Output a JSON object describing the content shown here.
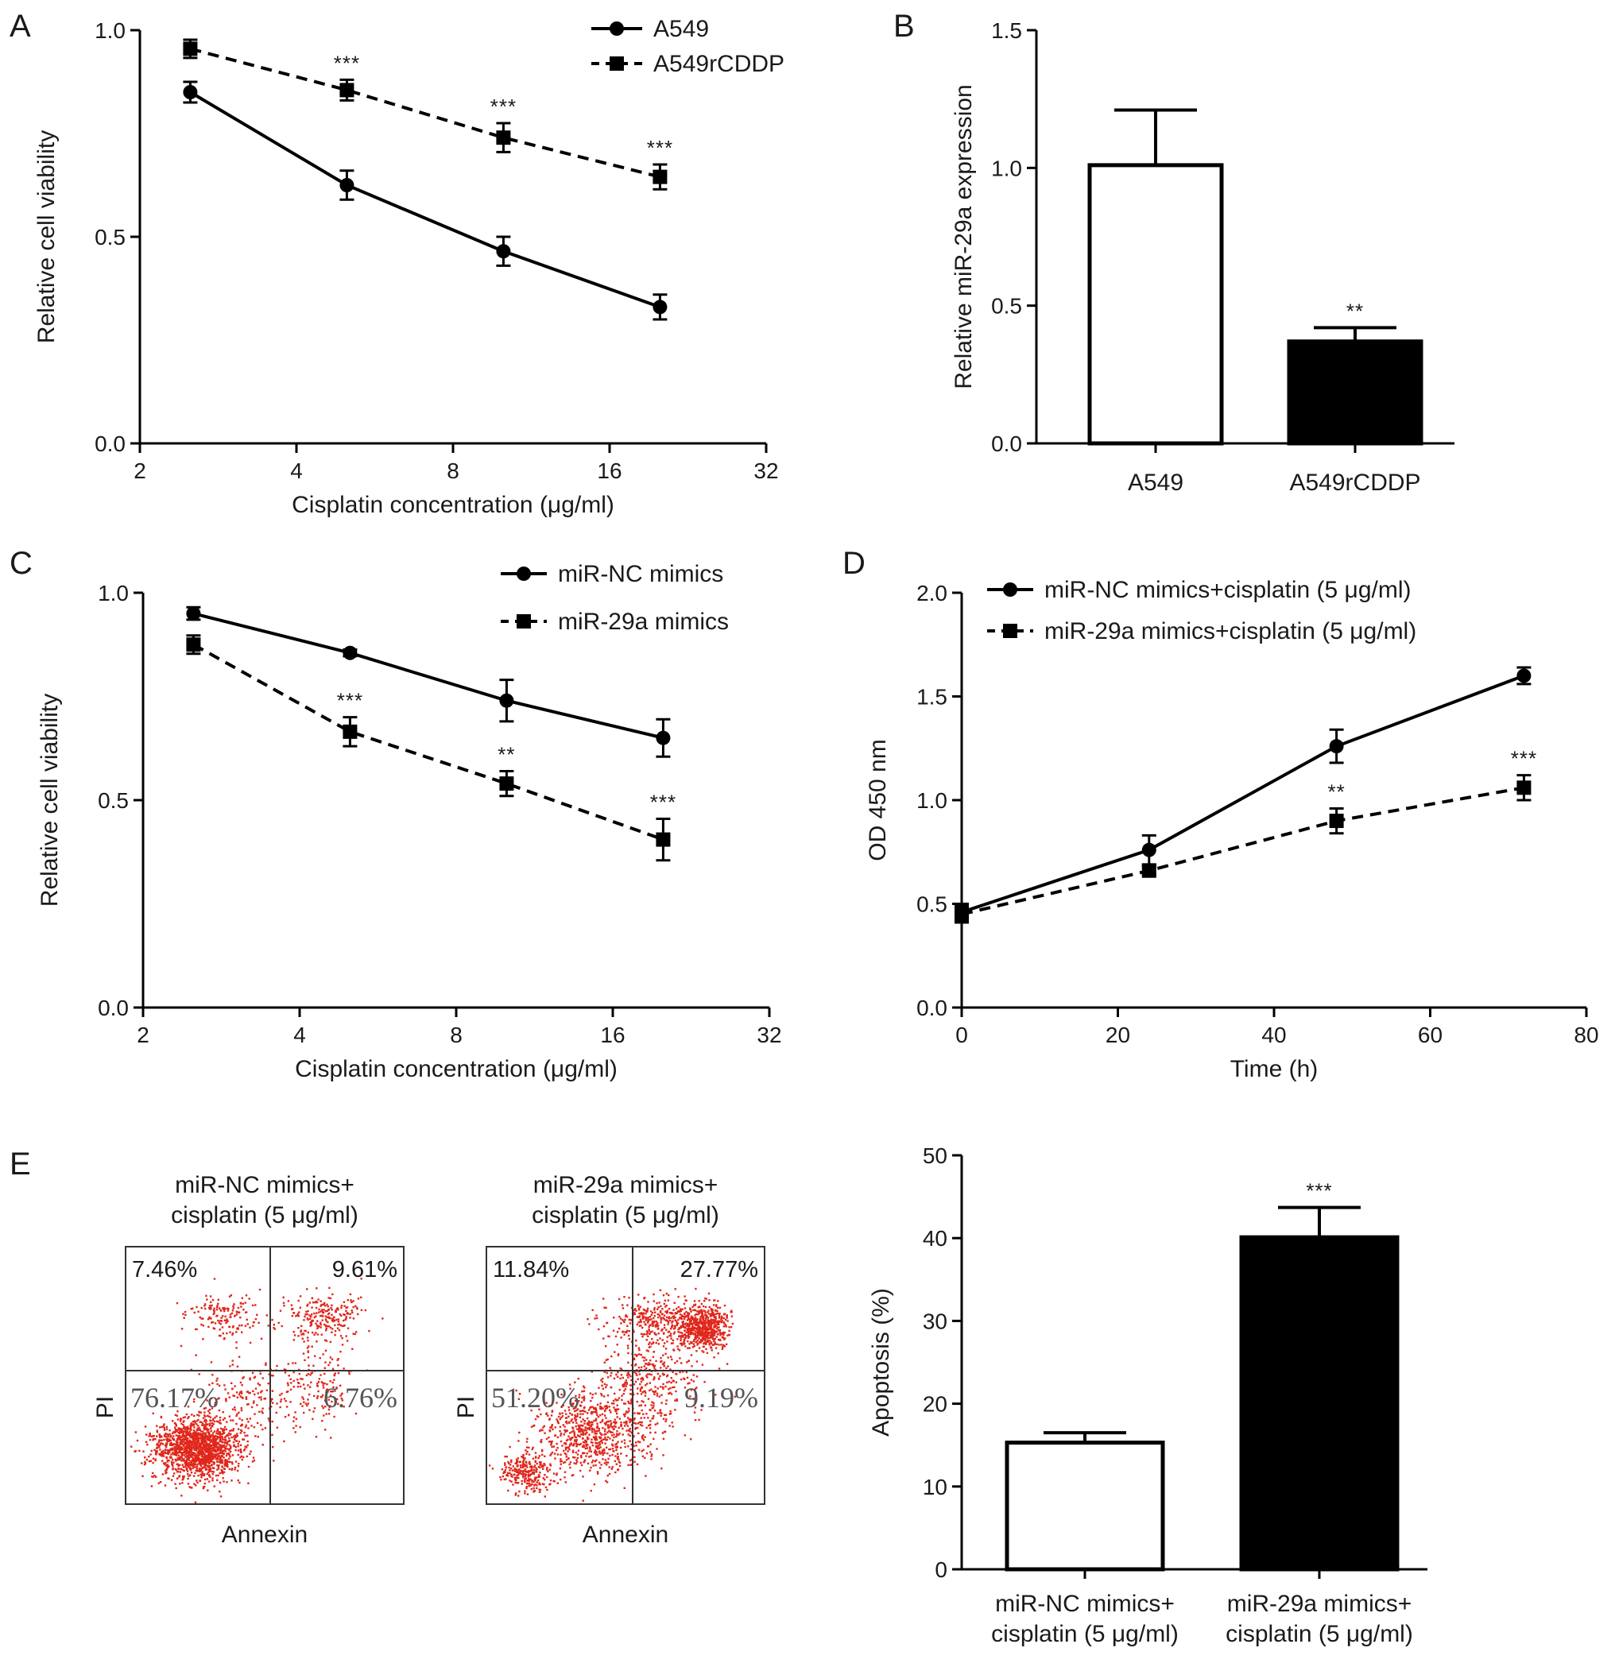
{
  "chart_data": [
    {
      "id": "A",
      "type": "line",
      "panel_label": "A",
      "xlabel": "Cisplatin concentration (μg/ml)",
      "ylabel": "Relative cell viability",
      "x_scale": "log2",
      "xlim": [
        2,
        32
      ],
      "ylim": [
        0,
        1
      ],
      "x_ticks": [
        2,
        4,
        8,
        16,
        32
      ],
      "y_ticks": [
        "0.0",
        "0.5",
        "1.0"
      ],
      "legend_position": "top-right",
      "series": [
        {
          "name": "A549",
          "marker": "circle",
          "line": "solid",
          "x": [
            2.5,
            5,
            10,
            20
          ],
          "y": [
            0.85,
            0.625,
            0.465,
            0.33
          ],
          "err": [
            0.025,
            0.035,
            0.035,
            0.03
          ]
        },
        {
          "name": "A549rCDDP",
          "marker": "square",
          "line": "dashed",
          "x": [
            2.5,
            5,
            10,
            20
          ],
          "y": [
            0.955,
            0.855,
            0.74,
            0.645
          ],
          "err": [
            0.022,
            0.025,
            0.035,
            0.03
          ],
          "significance": [
            "",
            "***",
            "***",
            "***"
          ]
        }
      ]
    },
    {
      "id": "B",
      "type": "bar",
      "panel_label": "B",
      "ylabel": "Relative miR-29a expression",
      "ylim": [
        0,
        1.5
      ],
      "y_ticks": [
        "0.0",
        "0.5",
        "1.0",
        "1.5"
      ],
      "categories": [
        "A549",
        "A549rCDDP"
      ],
      "values": [
        1.01,
        0.37
      ],
      "err": [
        0.2,
        0.05
      ],
      "fills": [
        "#ffffff",
        "#000000"
      ],
      "significance": [
        "",
        "**"
      ]
    },
    {
      "id": "C",
      "type": "line",
      "panel_label": "C",
      "xlabel": "Cisplatin concentration (μg/ml)",
      "ylabel": "Relative cell viability",
      "x_scale": "log2",
      "xlim": [
        2,
        32
      ],
      "ylim": [
        0,
        1
      ],
      "x_ticks": [
        2,
        4,
        8,
        16,
        32
      ],
      "y_ticks": [
        "0.0",
        "0.5",
        "1.0"
      ],
      "legend_position": "top-right",
      "series": [
        {
          "name": "miR-NC mimics",
          "marker": "circle",
          "line": "solid",
          "x": [
            2.5,
            5,
            10,
            20
          ],
          "y": [
            0.95,
            0.855,
            0.74,
            0.65
          ],
          "err": [
            0.015,
            0.008,
            0.05,
            0.045
          ]
        },
        {
          "name": "miR-29a mimics",
          "marker": "square",
          "line": "dashed",
          "x": [
            2.5,
            5,
            10,
            20
          ],
          "y": [
            0.875,
            0.665,
            0.54,
            0.405
          ],
          "err": [
            0.022,
            0.035,
            0.03,
            0.05
          ],
          "significance": [
            "",
            "***",
            "**",
            "***"
          ]
        }
      ]
    },
    {
      "id": "D",
      "type": "line",
      "panel_label": "D",
      "xlabel": "Time (h)",
      "ylabel": "OD 450 nm",
      "xlim": [
        0,
        80
      ],
      "ylim": [
        0,
        2
      ],
      "x_ticks": [
        0,
        20,
        40,
        60,
        80
      ],
      "y_ticks": [
        "0.0",
        "0.5",
        "1.0",
        "1.5",
        "2.0"
      ],
      "legend_position": "top-left",
      "series": [
        {
          "name": "miR-NC mimics+cisplatin (5 μg/ml)",
          "marker": "circle",
          "line": "solid",
          "x": [
            0,
            24,
            48,
            72
          ],
          "y": [
            0.46,
            0.76,
            1.26,
            1.6
          ],
          "err": [
            0.04,
            0.07,
            0.08,
            0.04
          ]
        },
        {
          "name": "miR-29a mimics+cisplatin (5 μg/ml)",
          "marker": "square",
          "line": "dashed",
          "x": [
            0,
            24,
            48,
            72
          ],
          "y": [
            0.45,
            0.66,
            0.9,
            1.06
          ],
          "err": [
            0.04,
            0.02,
            0.06,
            0.06
          ],
          "significance": [
            "",
            "",
            "**",
            "***"
          ]
        }
      ]
    },
    {
      "id": "E",
      "type": "bar",
      "panel_label": "E",
      "ylabel": "Apoptosis (%)",
      "ylim": [
        0,
        50
      ],
      "y_ticks": [
        "0",
        "10",
        "20",
        "30",
        "40",
        "50"
      ],
      "categories": [
        [
          "miR-NC mimics+",
          "cisplatin (5 μg/ml)"
        ],
        [
          "miR-29a mimics+",
          "cisplatin (5 μg/ml)"
        ]
      ],
      "values": [
        15.3,
        40.1
      ],
      "err": [
        1.2,
        3.6
      ],
      "fills": [
        "#ffffff",
        "#000000"
      ],
      "significance": [
        "",
        "***"
      ]
    }
  ],
  "flow_plots": [
    {
      "title": [
        "miR-NC mimics+",
        "cisplatin (5 μg/ml)"
      ],
      "quadrants": {
        "upper_left": "7.46%",
        "upper_right": "9.61%",
        "lower_left": "76.17%",
        "lower_right": "6.76%"
      },
      "xlabel": "Annexin",
      "ylabel": "PI",
      "dot_color": "#e0261b"
    },
    {
      "title": [
        "miR-29a mimics+",
        "cisplatin (5 μg/ml)"
      ],
      "quadrants": {
        "upper_left": "11.84%",
        "upper_right": "27.77%",
        "lower_left": "51.20%",
        "lower_right": "9.19%"
      },
      "xlabel": "Annexin",
      "ylabel": "PI",
      "dot_color": "#e0261b"
    }
  ]
}
